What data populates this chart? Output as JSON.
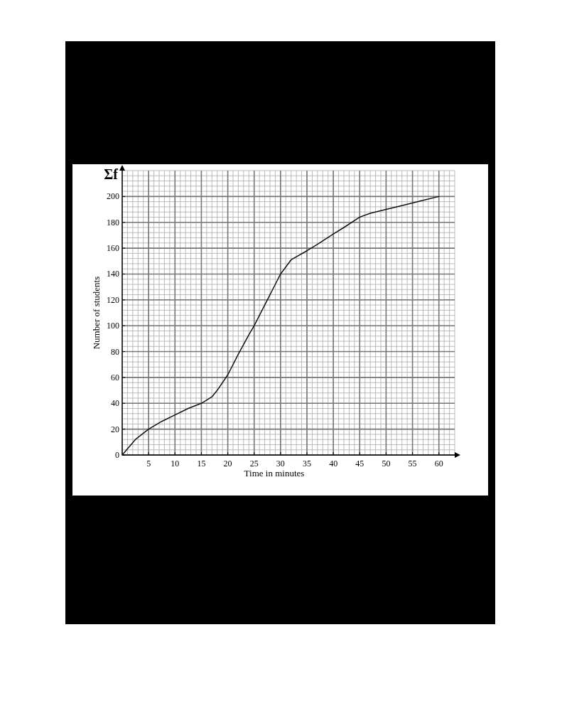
{
  "chart_data": {
    "type": "line",
    "xlabel": "Time in minutes",
    "ylabel": "Number of students",
    "annotations": [
      "Σf"
    ],
    "x": [
      0,
      2.5,
      5,
      7.5,
      10,
      12.5,
      15,
      17,
      18,
      20,
      22,
      24,
      25,
      27,
      29,
      30,
      32,
      35,
      37,
      40,
      42,
      45,
      47,
      50,
      52,
      55,
      57,
      60
    ],
    "series": [
      {
        "color": "#111111",
        "values": [
          0,
          12,
          20,
          26,
          31,
          36,
          40,
          45,
          50,
          62,
          78,
          93,
          100,
          116,
          132,
          140,
          151,
          158,
          163,
          171,
          176,
          184,
          187,
          190,
          192,
          195,
          197,
          200
        ]
      }
    ],
    "xlim": [
      0,
      63
    ],
    "ylim": [
      0,
      220
    ],
    "xticks": [
      5,
      10,
      15,
      20,
      25,
      30,
      35,
      40,
      45,
      50,
      55,
      60
    ],
    "yticks": [
      0,
      20,
      40,
      60,
      80,
      100,
      120,
      140,
      160,
      180,
      200
    ],
    "grid": true,
    "marker": "none",
    "line_style": "solid"
  }
}
